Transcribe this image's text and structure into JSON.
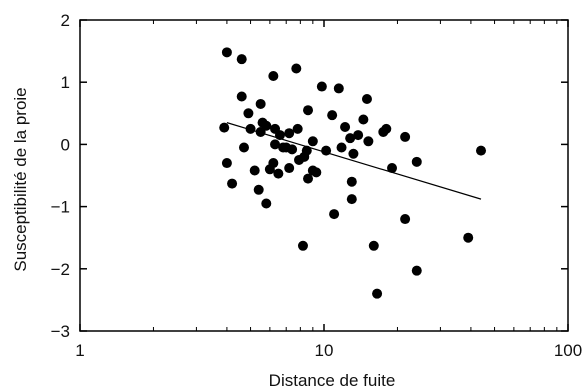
{
  "chart_data": {
    "type": "scatter",
    "xlabel": "Distance de fuite",
    "ylabel": "Susceptibilité de la proie",
    "x_scale": "log",
    "xlim": [
      1,
      100
    ],
    "ylim": [
      -3,
      2
    ],
    "x_ticks": [
      1,
      10,
      100
    ],
    "x_tick_labels": [
      "1",
      "10",
      "100"
    ],
    "y_ticks": [
      2,
      1,
      0,
      -1,
      -2,
      -3
    ],
    "y_tick_labels": [
      "2",
      "1",
      "0",
      "−1",
      "−2",
      "−3"
    ],
    "grid": false,
    "legend": "none",
    "colors": {
      "points": "#000000",
      "line": "#000000",
      "axes": "#000000"
    },
    "points": [
      {
        "x": 4.0,
        "y": 1.48
      },
      {
        "x": 4.6,
        "y": 1.37
      },
      {
        "x": 3.9,
        "y": 0.27
      },
      {
        "x": 4.0,
        "y": -0.3
      },
      {
        "x": 4.2,
        "y": -0.63
      },
      {
        "x": 4.6,
        "y": 0.77
      },
      {
        "x": 4.7,
        "y": -0.05
      },
      {
        "x": 4.9,
        "y": 0.5
      },
      {
        "x": 5.0,
        "y": 0.25
      },
      {
        "x": 5.2,
        "y": -0.42
      },
      {
        "x": 5.4,
        "y": -0.73
      },
      {
        "x": 5.5,
        "y": 0.65
      },
      {
        "x": 5.5,
        "y": 0.2
      },
      {
        "x": 5.6,
        "y": 0.35
      },
      {
        "x": 5.8,
        "y": 0.3
      },
      {
        "x": 5.8,
        "y": -0.95
      },
      {
        "x": 6.0,
        "y": -0.4
      },
      {
        "x": 6.2,
        "y": 1.1
      },
      {
        "x": 6.2,
        "y": -0.3
      },
      {
        "x": 6.3,
        "y": 0.0
      },
      {
        "x": 6.3,
        "y": 0.25
      },
      {
        "x": 6.5,
        "y": -0.47
      },
      {
        "x": 6.6,
        "y": 0.15
      },
      {
        "x": 6.8,
        "y": -0.05
      },
      {
        "x": 7.0,
        "y": -0.05
      },
      {
        "x": 7.2,
        "y": 0.18
      },
      {
        "x": 7.2,
        "y": -0.38
      },
      {
        "x": 7.4,
        "y": -0.08
      },
      {
        "x": 7.7,
        "y": 1.22
      },
      {
        "x": 7.8,
        "y": 0.25
      },
      {
        "x": 7.9,
        "y": -0.25
      },
      {
        "x": 8.2,
        "y": -1.63
      },
      {
        "x": 8.3,
        "y": -0.2
      },
      {
        "x": 8.5,
        "y": -0.1
      },
      {
        "x": 8.6,
        "y": 0.55
      },
      {
        "x": 8.6,
        "y": -0.55
      },
      {
        "x": 9.0,
        "y": 0.05
      },
      {
        "x": 9.0,
        "y": -0.42
      },
      {
        "x": 9.3,
        "y": -0.45
      },
      {
        "x": 9.8,
        "y": 0.93
      },
      {
        "x": 10.2,
        "y": -0.1
      },
      {
        "x": 10.8,
        "y": 0.47
      },
      {
        "x": 11.0,
        "y": -1.12
      },
      {
        "x": 11.5,
        "y": 0.9
      },
      {
        "x": 11.8,
        "y": -0.05
      },
      {
        "x": 12.2,
        "y": 0.28
      },
      {
        "x": 12.8,
        "y": 0.1
      },
      {
        "x": 13.0,
        "y": -0.6
      },
      {
        "x": 13.0,
        "y": -0.88
      },
      {
        "x": 13.2,
        "y": -0.15
      },
      {
        "x": 13.8,
        "y": 0.15
      },
      {
        "x": 14.5,
        "y": 0.4
      },
      {
        "x": 15.0,
        "y": 0.73
      },
      {
        "x": 15.2,
        "y": 0.05
      },
      {
        "x": 16.0,
        "y": -1.63
      },
      {
        "x": 16.5,
        "y": -2.4
      },
      {
        "x": 17.5,
        "y": 0.2
      },
      {
        "x": 18.0,
        "y": 0.25
      },
      {
        "x": 19.0,
        "y": -0.38
      },
      {
        "x": 21.5,
        "y": 0.12
      },
      {
        "x": 21.5,
        "y": -1.2
      },
      {
        "x": 24.0,
        "y": -0.28
      },
      {
        "x": 24.0,
        "y": -2.03
      },
      {
        "x": 39.0,
        "y": -1.5
      },
      {
        "x": 44.0,
        "y": -0.1
      }
    ],
    "regression_line": {
      "x": [
        4.0,
        44.0
      ],
      "y": [
        0.35,
        -0.88
      ]
    }
  }
}
